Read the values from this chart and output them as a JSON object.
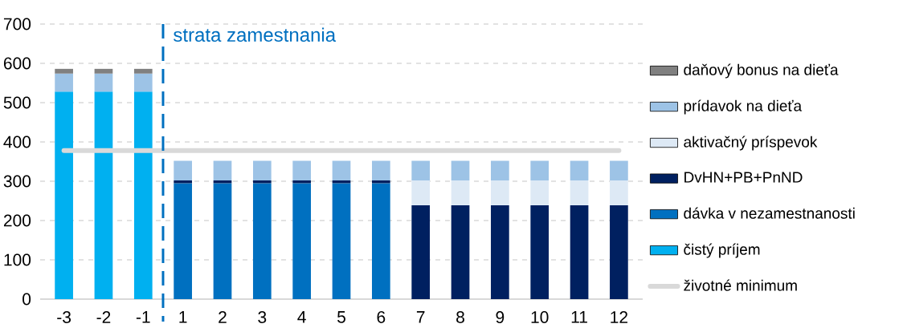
{
  "chart_data": {
    "type": "bar",
    "stacked": true,
    "categories": [
      "-3",
      "-2",
      "-1",
      "1",
      "2",
      "3",
      "4",
      "5",
      "6",
      "7",
      "8",
      "9",
      "10",
      "11",
      "12"
    ],
    "series": [
      {
        "name": "čistý príjem",
        "color": "#00b0f0",
        "values": [
          528,
          528,
          528,
          null,
          null,
          null,
          null,
          null,
          null,
          null,
          null,
          null,
          null,
          null,
          null
        ]
      },
      {
        "name": "dávka v nezamestnanosti",
        "color": "#0070c0",
        "values": [
          null,
          null,
          null,
          295,
          295,
          295,
          295,
          295,
          295,
          null,
          null,
          null,
          null,
          null,
          null
        ]
      },
      {
        "name": "DvHN+PB+PnND",
        "color": "#002060",
        "values": [
          null,
          null,
          null,
          7,
          7,
          7,
          7,
          7,
          7,
          239,
          239,
          239,
          239,
          239,
          239
        ]
      },
      {
        "name": "aktivačný príspevok",
        "color": "#dde9f5",
        "values": [
          null,
          null,
          null,
          null,
          null,
          null,
          null,
          null,
          null,
          63,
          63,
          63,
          63,
          63,
          63
        ]
      },
      {
        "name": "prídavok na dieťa",
        "color": "#9dc3e6",
        "values": [
          46,
          46,
          46,
          50,
          50,
          50,
          50,
          50,
          50,
          50,
          50,
          50,
          50,
          50,
          50
        ]
      },
      {
        "name": "daňový bonus na dieťa",
        "color": "#808080",
        "values": [
          12,
          12,
          12,
          null,
          null,
          null,
          null,
          null,
          null,
          null,
          null,
          null,
          null,
          null,
          null
        ]
      },
      {
        "name": "životné minimum",
        "type": "line",
        "color": "#d9d9d9",
        "values": [
          378,
          378,
          378,
          378,
          378,
          378,
          378,
          378,
          378,
          378,
          378,
          378,
          378,
          378,
          378
        ]
      }
    ],
    "ylim": [
      0,
      700
    ],
    "yticks": [
      0,
      100,
      200,
      300,
      400,
      500,
      600,
      700
    ],
    "grid": "y",
    "legend": "right",
    "ref_lines": [
      {
        "axis": "x",
        "value": "1",
        "label": "strata zamestnania",
        "color": "#0070c0",
        "line_style": "dashed"
      }
    ]
  }
}
